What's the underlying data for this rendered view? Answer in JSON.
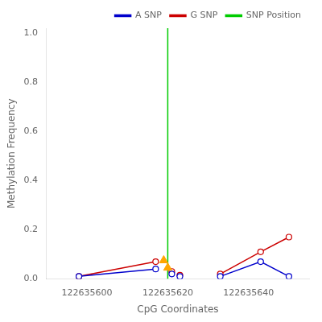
{
  "chart_data": {
    "type": "line",
    "xlabel": "CpG Coordinates",
    "ylabel": "Methylation Frequency",
    "x": [
      122635598,
      122635617,
      122635621,
      122635623,
      122635633,
      122635643,
      122635650
    ],
    "series": [
      {
        "name": "A SNP",
        "color": "#0000cc",
        "marker": "circle",
        "values": [
          0.01,
          0.04,
          0.02,
          0.01,
          0.01,
          0.07,
          0.01
        ]
      },
      {
        "name": "G SNP",
        "color": "#cc0000",
        "marker": "circle",
        "values": [
          0.01,
          0.07,
          0.03,
          0.015,
          0.02,
          0.11,
          0.17
        ]
      },
      {
        "name": "SNP Position",
        "type": "vline",
        "color": "#00cc00",
        "x": 122635620
      },
      {
        "type": "scatter",
        "marker": "triangle",
        "color": "#FFA500",
        "x": [
          122635619,
          122635620
        ],
        "values": [
          0.075,
          0.045
        ]
      }
    ],
    "segments": [
      [
        0,
        1
      ],
      [
        4,
        5,
        6
      ]
    ],
    "xlim": [
      122635590,
      122635655
    ],
    "xticks": [
      122635600,
      122635620,
      122635640
    ],
    "ylim": [
      0,
      1.02
    ],
    "yticks": [
      {
        "value": 0.0,
        "label": "0.0"
      },
      0.2,
      0.4,
      0.6,
      0.8,
      {
        "value": 1.0,
        "label": "1.0"
      }
    ],
    "grid": false,
    "legend": "upper right"
  }
}
